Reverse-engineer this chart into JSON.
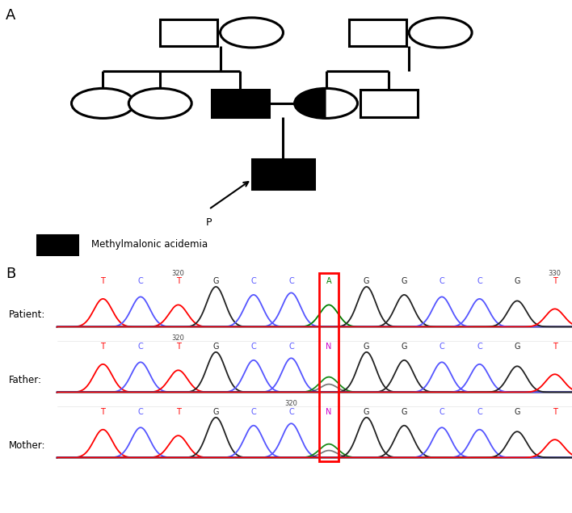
{
  "panel_A_label": "A",
  "panel_B_label": "B",
  "legend_text": "Methylmalonic acidemia",
  "proband_label": "P",
  "patient_label": "Patient:",
  "father_label": "Father:",
  "mother_label": "Mother:",
  "red_box_color": "#ff0000",
  "black": "#000000",
  "white": "#ffffff",
  "bg_color": "#ffffff",
  "seq_labels_patient": [
    "T",
    "C",
    "T",
    "G",
    "C",
    "C",
    "A",
    "G",
    "G",
    "C",
    "C",
    "G",
    "T"
  ],
  "seq_labels_father": [
    "T",
    "C",
    "T",
    "G",
    "C",
    "C",
    "N",
    "G",
    "G",
    "C",
    "C",
    "G",
    "T"
  ],
  "seq_labels_mother": [
    "T",
    "C",
    "T",
    "G",
    "C",
    "C",
    "N",
    "G",
    "G",
    "C",
    "C",
    "G",
    "T"
  ],
  "highlight_index": 6,
  "figure_bg": "#ffffff",
  "num_320_patient_idx": 2,
  "num_330_patient_idx": 12,
  "num_320_father_idx": 2,
  "num_320_mother_idx": 5
}
